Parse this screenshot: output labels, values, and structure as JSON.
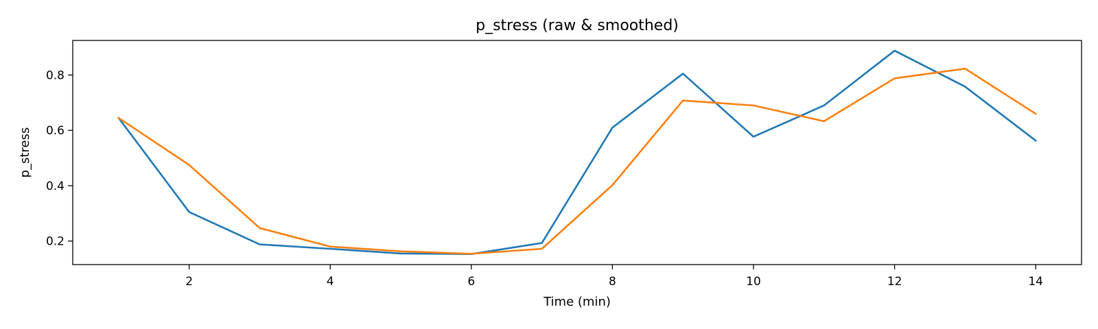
{
  "chart_data": {
    "type": "line",
    "title": "p_stress (raw & smoothed)",
    "xlabel": "Time (min)",
    "ylabel": "p_stress",
    "xlim": [
      0.35,
      14.65
    ],
    "ylim": [
      0.115,
      0.925
    ],
    "xticks": [
      2,
      4,
      6,
      8,
      10,
      12,
      14
    ],
    "yticks": [
      0.2,
      0.4,
      0.6,
      0.8
    ],
    "xtick_labels": [
      "2",
      "4",
      "6",
      "8",
      "10",
      "12",
      "14"
    ],
    "ytick_labels": [
      "0.2",
      "0.4",
      "0.6",
      "0.8"
    ],
    "grid": false,
    "legend": "none",
    "x": [
      1,
      2,
      3,
      4,
      5,
      6,
      7,
      8,
      9,
      10,
      11,
      12,
      13,
      14
    ],
    "series": [
      {
        "color": "#1f77b4",
        "values": [
          0.645,
          0.305,
          0.188,
          0.172,
          0.155,
          0.153,
          0.193,
          0.61,
          0.805,
          0.577,
          0.69,
          0.888,
          0.758,
          0.563
        ]
      },
      {
        "color": "#ff7f0e",
        "values": [
          0.645,
          0.475,
          0.247,
          0.18,
          0.163,
          0.154,
          0.172,
          0.402,
          0.708,
          0.69,
          0.633,
          0.788,
          0.823,
          0.66
        ]
      }
    ]
  }
}
